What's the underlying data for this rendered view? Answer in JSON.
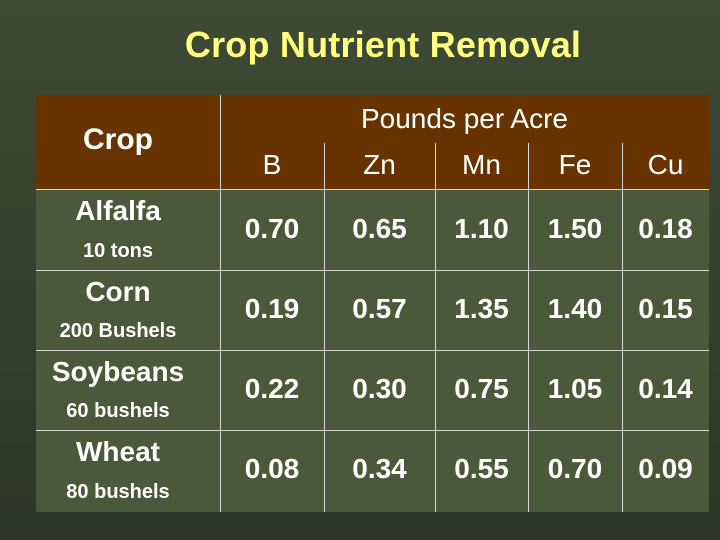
{
  "title": "Crop Nutrient Removal",
  "table": {
    "crop_header": "Crop",
    "group_header": "Pounds per Acre",
    "columns": [
      "B",
      "Zn",
      "Mn",
      "Fe",
      "Cu"
    ],
    "rows": [
      {
        "crop": "Alfalfa",
        "amount": "10 tons",
        "values": [
          "0.70",
          "0.65",
          "1.10",
          "1.50",
          "0.18"
        ]
      },
      {
        "crop": "Corn",
        "amount": "200 Bushels",
        "values": [
          "0.19",
          "0.57",
          "1.35",
          "1.40",
          "0.15"
        ]
      },
      {
        "crop": "Soybeans",
        "amount": "60 bushels",
        "values": [
          "0.22",
          "0.30",
          "0.75",
          "1.05",
          "0.14"
        ]
      },
      {
        "crop": "Wheat",
        "amount": "80 bushels",
        "values": [
          "0.08",
          "0.34",
          "0.55",
          "0.70",
          "0.09"
        ]
      }
    ]
  },
  "colors": {
    "title": "#ffff80",
    "header_bg": "#673300",
    "body_bg": "#4b5839",
    "grid": "#d8d8d8"
  }
}
